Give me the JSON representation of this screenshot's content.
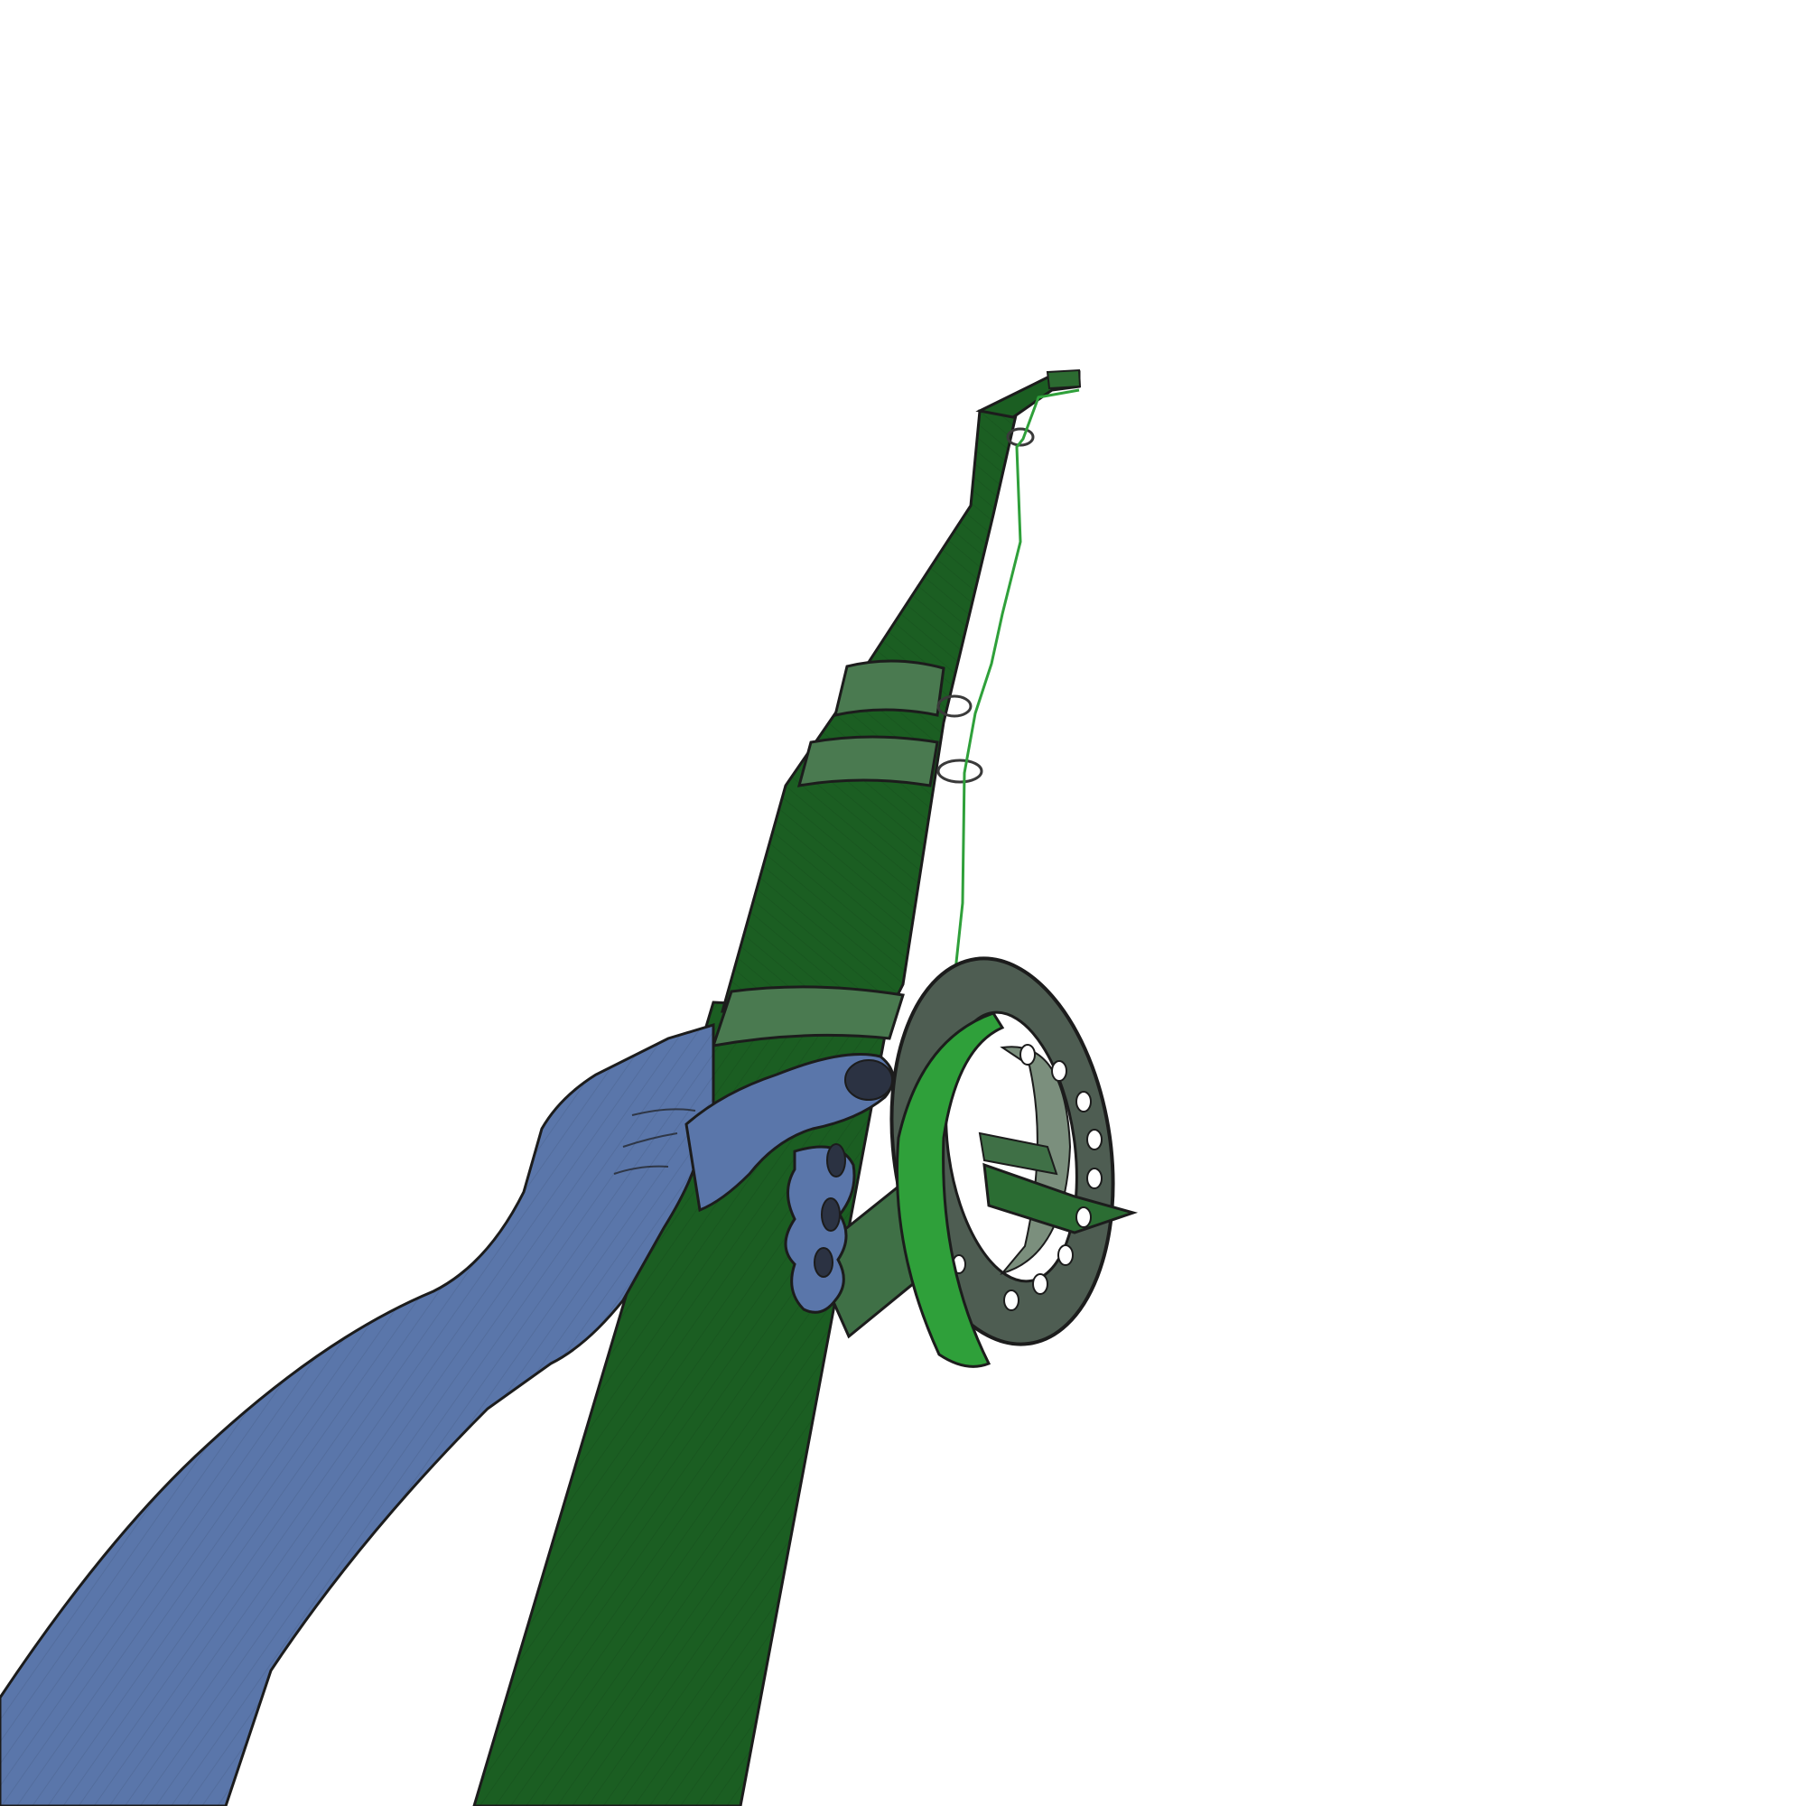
{
  "scene": {
    "background_color": "#ffffff",
    "subjects": [
      "hand-holding-fishing-rod",
      "fishing-reel",
      "fishing-line"
    ]
  },
  "colors": {
    "rod": "#1b5e22",
    "rod_dark": "#123f17",
    "rod_band": "#4a7a50",
    "reel_frame": "#4e5d52",
    "reel_spool": "#7b8f7d",
    "line": "#2fa03a",
    "hand": "#5a76aa",
    "hand_shadow": "#475f8d",
    "fingernail": "#2b3242",
    "outline": "#1c1c1c"
  }
}
